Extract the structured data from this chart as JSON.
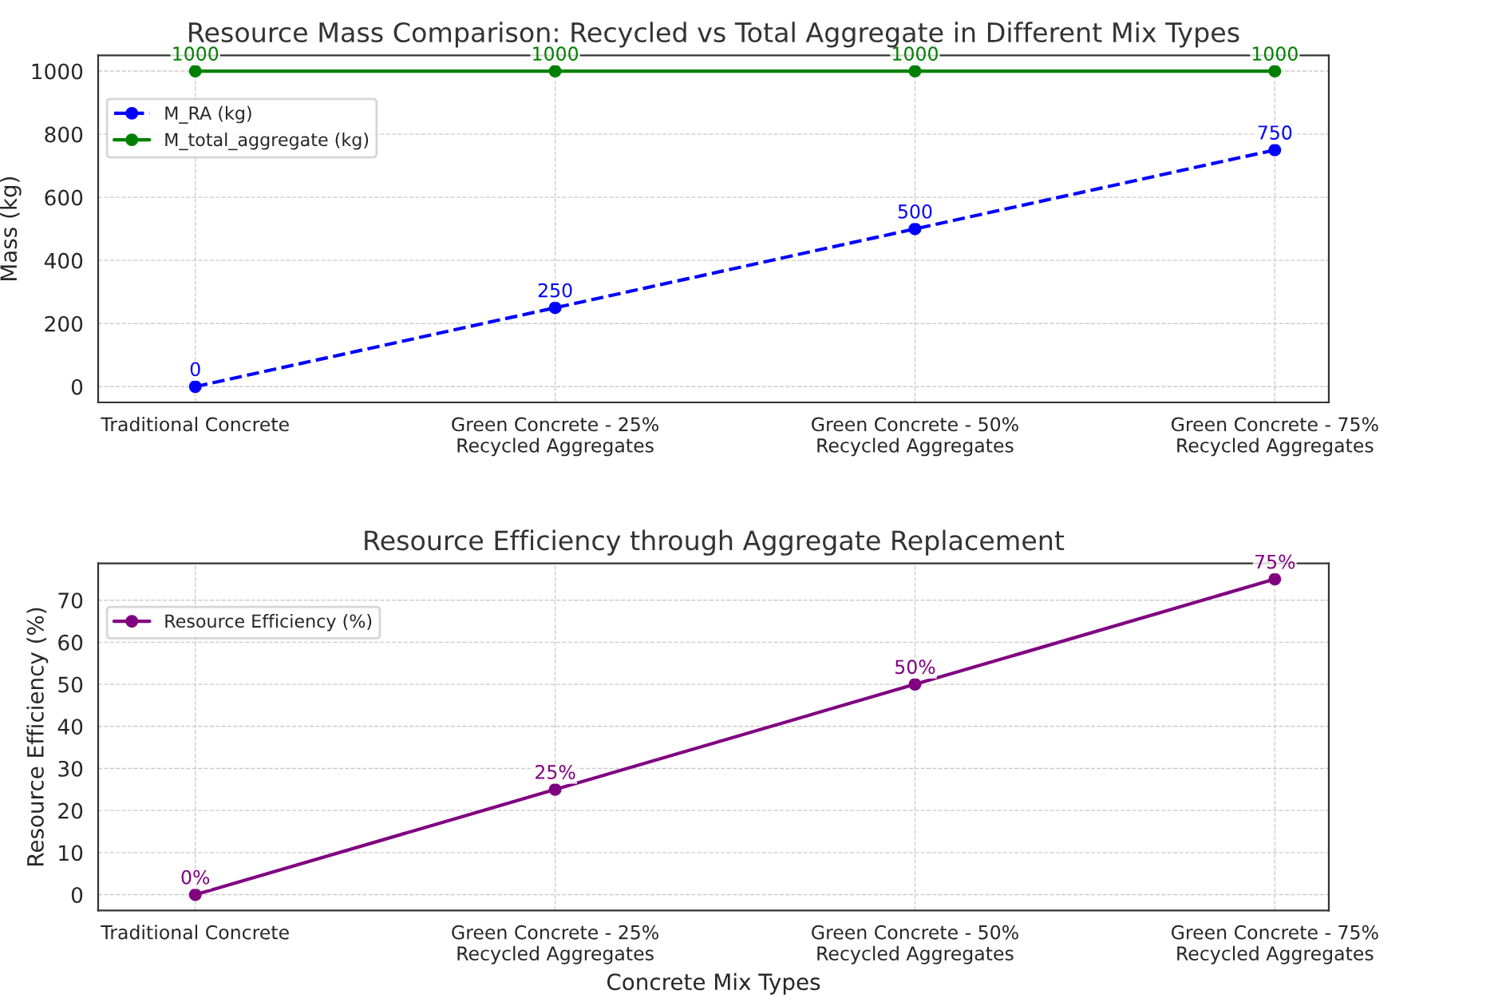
{
  "chart_data": [
    {
      "type": "line",
      "title": "Resource Mass Comparison: Recycled vs Total Aggregate in Different Mix Types",
      "ylabel": "Mass (kg)",
      "categories": [
        "Traditional Concrete",
        "Green Concrete - 25% Recycled Aggregates",
        "Green Concrete - 50% Recycled Aggregates",
        "Green Concrete - 75% Recycled Aggregates"
      ],
      "series": [
        {
          "name": "M_RA (kg)",
          "color": "#0000ff",
          "values": [
            0,
            250,
            500,
            750
          ],
          "line_style": "dashed"
        },
        {
          "name": "M_total_aggregate (kg)",
          "color": "#008000",
          "values": [
            1000,
            1000,
            1000,
            1000
          ],
          "line_style": "solid"
        }
      ],
      "ylim": [
        -50,
        1050
      ],
      "yticks": [
        0,
        200,
        400,
        600,
        800,
        1000
      ],
      "grid": true,
      "legend": "top left",
      "marker": "circle",
      "data_labels": true
    },
    {
      "type": "line",
      "title": "Resource Efficiency through Aggregate Replacement",
      "xlabel": "Concrete Mix Types",
      "ylabel": "Resource Efficiency (%)",
      "categories": [
        "Traditional Concrete",
        "Green Concrete - 25% Recycled Aggregates",
        "Green Concrete - 50% Recycled Aggregates",
        "Green Concrete - 75% Recycled Aggregates"
      ],
      "series": [
        {
          "name": "Resource Efficiency (%)",
          "color": "#800080",
          "values": [
            0,
            25,
            50,
            75
          ],
          "line_style": "solid",
          "value_labels": [
            "0%",
            "25%",
            "50%",
            "75%"
          ]
        }
      ],
      "ylim": [
        -3.75,
        78.75
      ],
      "yticks": [
        0,
        10,
        20,
        30,
        40,
        50,
        60,
        70
      ],
      "grid": true,
      "legend": "top left",
      "marker": "circle"
    }
  ]
}
